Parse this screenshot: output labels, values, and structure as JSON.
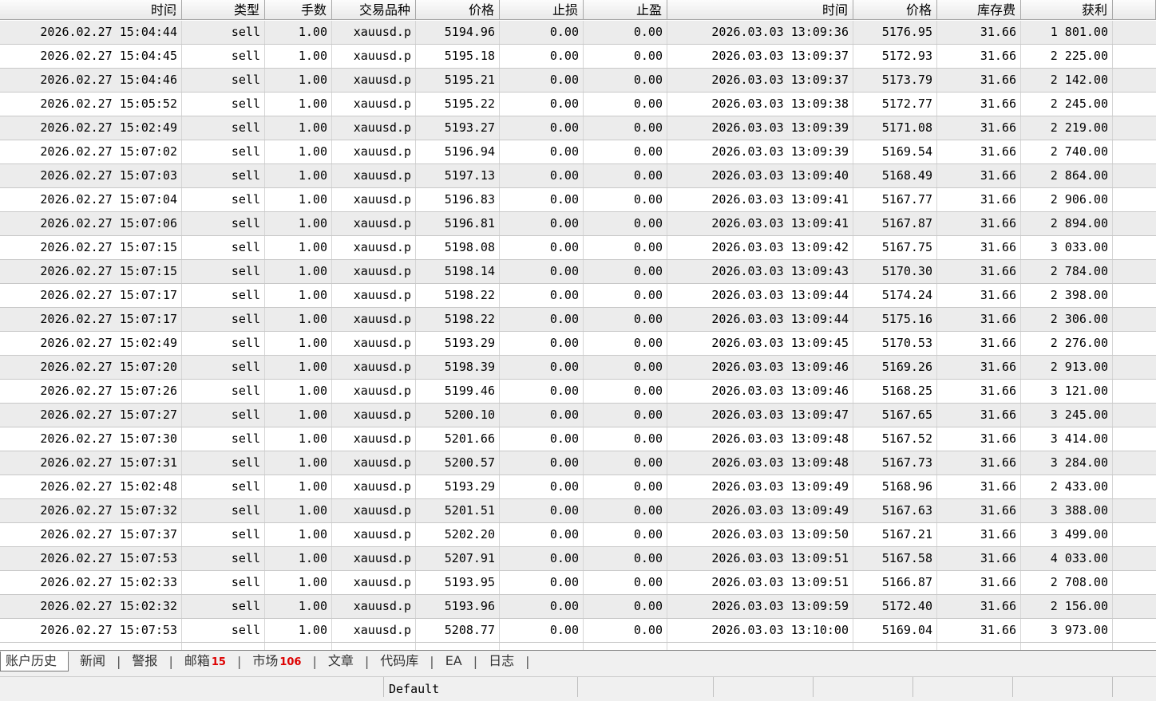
{
  "table": {
    "columns": [
      "时间",
      "类型",
      "手数",
      "交易品种",
      "价格",
      "止损",
      "止盈",
      "时间",
      "价格",
      "库存费",
      "获利"
    ],
    "rows": [
      [
        "2026.02.27 15:04:44",
        "sell",
        "1.00",
        "xauusd.p",
        "5194.96",
        "0.00",
        "0.00",
        "2026.03.03 13:09:36",
        "5176.95",
        "31.66",
        "1 801.00"
      ],
      [
        "2026.02.27 15:04:45",
        "sell",
        "1.00",
        "xauusd.p",
        "5195.18",
        "0.00",
        "0.00",
        "2026.03.03 13:09:37",
        "5172.93",
        "31.66",
        "2 225.00"
      ],
      [
        "2026.02.27 15:04:46",
        "sell",
        "1.00",
        "xauusd.p",
        "5195.21",
        "0.00",
        "0.00",
        "2026.03.03 13:09:37",
        "5173.79",
        "31.66",
        "2 142.00"
      ],
      [
        "2026.02.27 15:05:52",
        "sell",
        "1.00",
        "xauusd.p",
        "5195.22",
        "0.00",
        "0.00",
        "2026.03.03 13:09:38",
        "5172.77",
        "31.66",
        "2 245.00"
      ],
      [
        "2026.02.27 15:02:49",
        "sell",
        "1.00",
        "xauusd.p",
        "5193.27",
        "0.00",
        "0.00",
        "2026.03.03 13:09:39",
        "5171.08",
        "31.66",
        "2 219.00"
      ],
      [
        "2026.02.27 15:07:02",
        "sell",
        "1.00",
        "xauusd.p",
        "5196.94",
        "0.00",
        "0.00",
        "2026.03.03 13:09:39",
        "5169.54",
        "31.66",
        "2 740.00"
      ],
      [
        "2026.02.27 15:07:03",
        "sell",
        "1.00",
        "xauusd.p",
        "5197.13",
        "0.00",
        "0.00",
        "2026.03.03 13:09:40",
        "5168.49",
        "31.66",
        "2 864.00"
      ],
      [
        "2026.02.27 15:07:04",
        "sell",
        "1.00",
        "xauusd.p",
        "5196.83",
        "0.00",
        "0.00",
        "2026.03.03 13:09:41",
        "5167.77",
        "31.66",
        "2 906.00"
      ],
      [
        "2026.02.27 15:07:06",
        "sell",
        "1.00",
        "xauusd.p",
        "5196.81",
        "0.00",
        "0.00",
        "2026.03.03 13:09:41",
        "5167.87",
        "31.66",
        "2 894.00"
      ],
      [
        "2026.02.27 15:07:15",
        "sell",
        "1.00",
        "xauusd.p",
        "5198.08",
        "0.00",
        "0.00",
        "2026.03.03 13:09:42",
        "5167.75",
        "31.66",
        "3 033.00"
      ],
      [
        "2026.02.27 15:07:15",
        "sell",
        "1.00",
        "xauusd.p",
        "5198.14",
        "0.00",
        "0.00",
        "2026.03.03 13:09:43",
        "5170.30",
        "31.66",
        "2 784.00"
      ],
      [
        "2026.02.27 15:07:17",
        "sell",
        "1.00",
        "xauusd.p",
        "5198.22",
        "0.00",
        "0.00",
        "2026.03.03 13:09:44",
        "5174.24",
        "31.66",
        "2 398.00"
      ],
      [
        "2026.02.27 15:07:17",
        "sell",
        "1.00",
        "xauusd.p",
        "5198.22",
        "0.00",
        "0.00",
        "2026.03.03 13:09:44",
        "5175.16",
        "31.66",
        "2 306.00"
      ],
      [
        "2026.02.27 15:02:49",
        "sell",
        "1.00",
        "xauusd.p",
        "5193.29",
        "0.00",
        "0.00",
        "2026.03.03 13:09:45",
        "5170.53",
        "31.66",
        "2 276.00"
      ],
      [
        "2026.02.27 15:07:20",
        "sell",
        "1.00",
        "xauusd.p",
        "5198.39",
        "0.00",
        "0.00",
        "2026.03.03 13:09:46",
        "5169.26",
        "31.66",
        "2 913.00"
      ],
      [
        "2026.02.27 15:07:26",
        "sell",
        "1.00",
        "xauusd.p",
        "5199.46",
        "0.00",
        "0.00",
        "2026.03.03 13:09:46",
        "5168.25",
        "31.66",
        "3 121.00"
      ],
      [
        "2026.02.27 15:07:27",
        "sell",
        "1.00",
        "xauusd.p",
        "5200.10",
        "0.00",
        "0.00",
        "2026.03.03 13:09:47",
        "5167.65",
        "31.66",
        "3 245.00"
      ],
      [
        "2026.02.27 15:07:30",
        "sell",
        "1.00",
        "xauusd.p",
        "5201.66",
        "0.00",
        "0.00",
        "2026.03.03 13:09:48",
        "5167.52",
        "31.66",
        "3 414.00"
      ],
      [
        "2026.02.27 15:07:31",
        "sell",
        "1.00",
        "xauusd.p",
        "5200.57",
        "0.00",
        "0.00",
        "2026.03.03 13:09:48",
        "5167.73",
        "31.66",
        "3 284.00"
      ],
      [
        "2026.02.27 15:02:48",
        "sell",
        "1.00",
        "xauusd.p",
        "5193.29",
        "0.00",
        "0.00",
        "2026.03.03 13:09:49",
        "5168.96",
        "31.66",
        "2 433.00"
      ],
      [
        "2026.02.27 15:07:32",
        "sell",
        "1.00",
        "xauusd.p",
        "5201.51",
        "0.00",
        "0.00",
        "2026.03.03 13:09:49",
        "5167.63",
        "31.66",
        "3 388.00"
      ],
      [
        "2026.02.27 15:07:37",
        "sell",
        "1.00",
        "xauusd.p",
        "5202.20",
        "0.00",
        "0.00",
        "2026.03.03 13:09:50",
        "5167.21",
        "31.66",
        "3 499.00"
      ],
      [
        "2026.02.27 15:07:53",
        "sell",
        "1.00",
        "xauusd.p",
        "5207.91",
        "0.00",
        "0.00",
        "2026.03.03 13:09:51",
        "5167.58",
        "31.66",
        "4 033.00"
      ],
      [
        "2026.02.27 15:02:33",
        "sell",
        "1.00",
        "xauusd.p",
        "5193.95",
        "0.00",
        "0.00",
        "2026.03.03 13:09:51",
        "5166.87",
        "31.66",
        "2 708.00"
      ],
      [
        "2026.02.27 15:02:32",
        "sell",
        "1.00",
        "xauusd.p",
        "5193.96",
        "0.00",
        "0.00",
        "2026.03.03 13:09:59",
        "5172.40",
        "31.66",
        "2 156.00"
      ],
      [
        "2026.02.27 15:07:53",
        "sell",
        "1.00",
        "xauusd.p",
        "5208.77",
        "0.00",
        "0.00",
        "2026.03.03 13:10:00",
        "5169.04",
        "31.66",
        "3 973.00"
      ]
    ]
  },
  "tabs": [
    {
      "label": "账户历史"
    },
    {
      "label": "新闻"
    },
    {
      "label": "警报"
    },
    {
      "label": "邮箱",
      "badge": "15"
    },
    {
      "label": "市场",
      "badge": "106"
    },
    {
      "label": "文章"
    },
    {
      "label": "代码库"
    },
    {
      "label": "EA"
    },
    {
      "label": "日志"
    }
  ],
  "status_bar": {
    "profile": "Default"
  }
}
